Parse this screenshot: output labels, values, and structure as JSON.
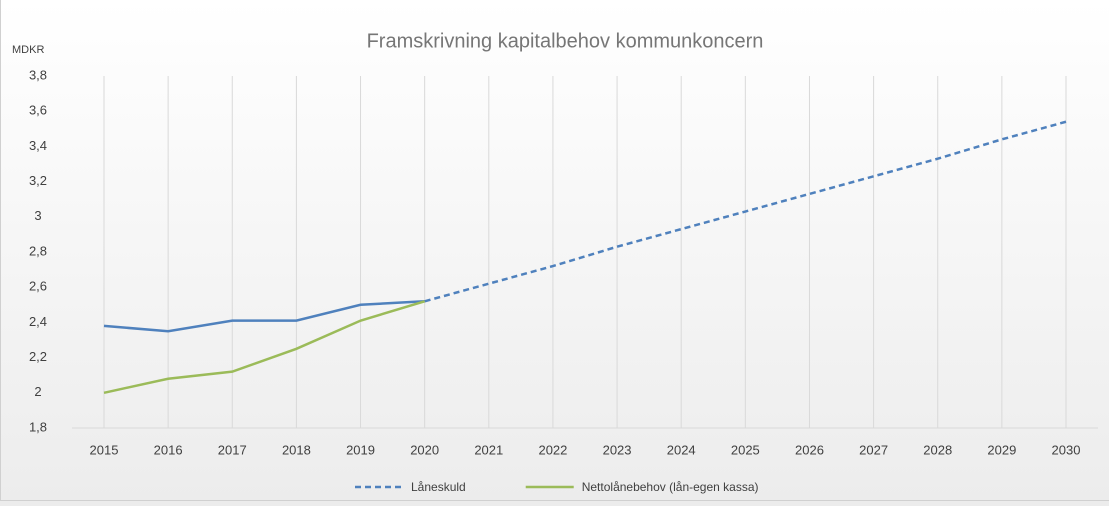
{
  "chart_data": {
    "type": "line",
    "title": "Framskrivning kapitalbehov kommunkoncern",
    "y_label": "MDKR",
    "categories": [
      "2015",
      "2016",
      "2017",
      "2018",
      "2019",
      "2020",
      "2021",
      "2022",
      "2023",
      "2024",
      "2025",
      "2026",
      "2027",
      "2028",
      "2029",
      "2030"
    ],
    "series": [
      {
        "name": "Låneskuld",
        "color": "#4f81bd",
        "dashed_from": "2020",
        "values": [
          2.38,
          2.35,
          2.41,
          2.41,
          2.5,
          2.52,
          2.62,
          2.72,
          2.83,
          2.93,
          3.03,
          3.13,
          3.23,
          3.33,
          3.44,
          3.54
        ]
      },
      {
        "name": "Nettolånebehov (lån-egen kassa)",
        "color": "#9bbb59",
        "values": [
          2.0,
          2.08,
          2.12,
          2.25,
          2.41,
          2.52,
          null,
          null,
          null,
          null,
          null,
          null,
          null,
          null,
          null,
          null
        ]
      }
    ],
    "ylim": [
      1.8,
      3.8
    ],
    "yticks": [
      {
        "value": 1.8,
        "label": "1,8"
      },
      2,
      {
        "value": 2.2,
        "label": "2,2"
      },
      {
        "value": 2.4,
        "label": "2,4"
      },
      {
        "value": 2.6,
        "label": "2,6"
      },
      {
        "value": 2.8,
        "label": "2,8"
      },
      3,
      {
        "value": 3.2,
        "label": "3,2"
      },
      {
        "value": 3.4,
        "label": "3,4"
      },
      {
        "value": 3.6,
        "label": "3,6"
      },
      {
        "value": 3.8,
        "label": "3,8"
      }
    ],
    "grid": true,
    "legend": "bottom"
  }
}
